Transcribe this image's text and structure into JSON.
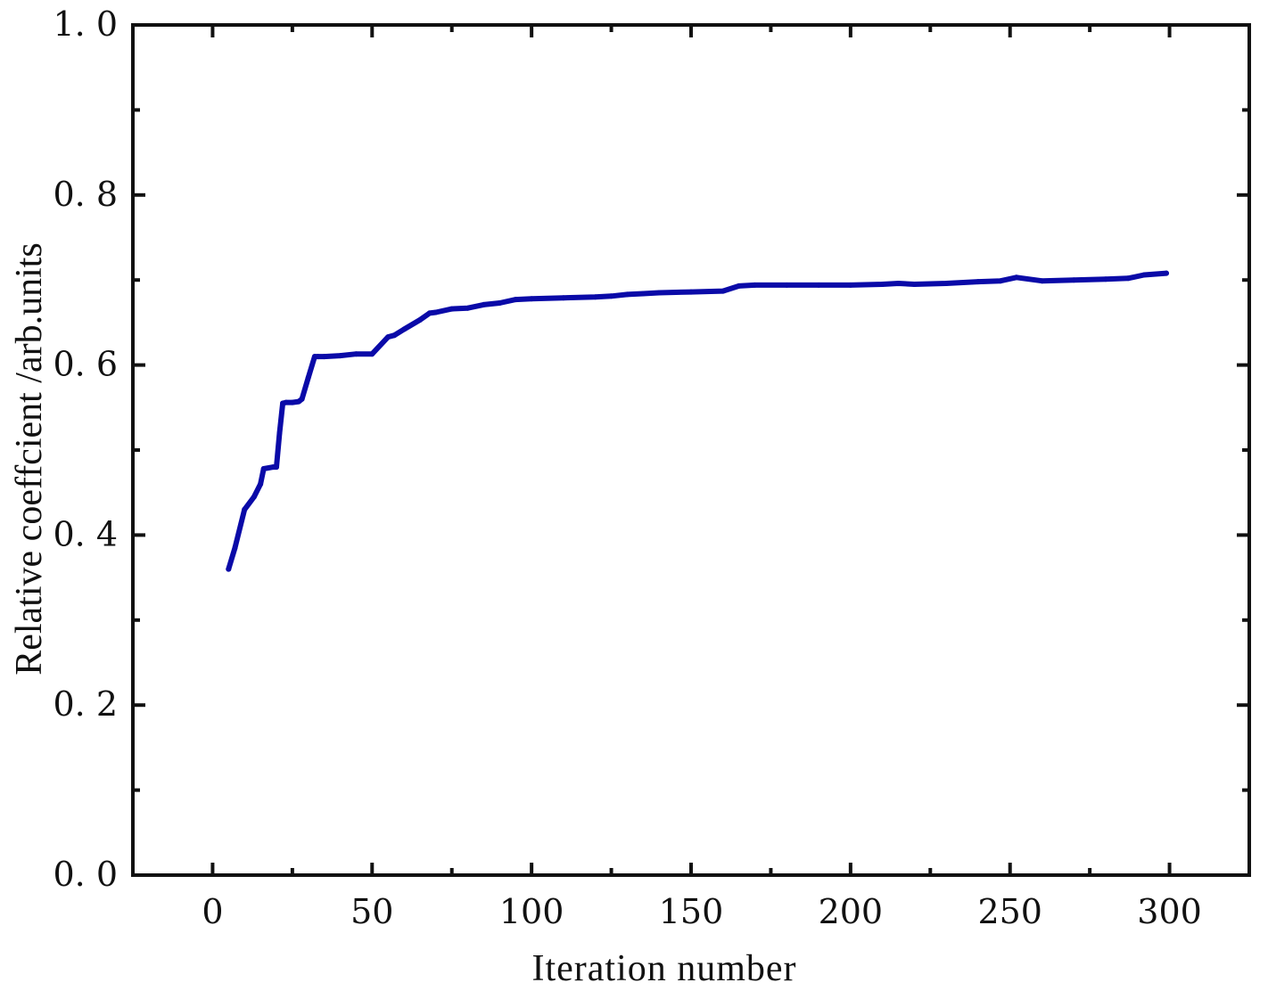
{
  "chart_data": {
    "type": "line",
    "title": "",
    "xlabel": "Iteration number",
    "ylabel": "Relative coeffcient /arb.units",
    "xlim": [
      -25,
      325
    ],
    "ylim": [
      0.0,
      1.0
    ],
    "x_ticks": [
      0,
      50,
      100,
      150,
      200,
      250,
      300
    ],
    "x_tick_labels": [
      "0",
      "50",
      "100",
      "150",
      "200",
      "250",
      "300"
    ],
    "y_ticks": [
      0.0,
      0.2,
      0.4,
      0.6,
      0.8,
      1.0
    ],
    "y_tick_labels": [
      "0. 0",
      "0. 2",
      "0. 4",
      "0. 6",
      "0. 8",
      "1. 0"
    ],
    "grid": false,
    "legend": "none",
    "colors": {
      "series": "#0a0aa8",
      "axes": "#111111"
    },
    "series": [
      {
        "x": [
          5,
          7,
          10,
          13,
          15,
          16,
          19,
          20,
          21,
          22,
          23,
          25,
          27,
          28,
          30,
          32,
          33,
          35,
          40,
          45,
          50,
          55,
          57,
          60,
          65,
          68,
          70,
          75,
          80,
          85,
          90,
          95,
          100,
          110,
          120,
          125,
          130,
          135,
          140,
          150,
          160,
          165,
          170,
          180,
          190,
          200,
          210,
          215,
          220,
          230,
          240,
          247,
          252,
          260,
          270,
          280,
          287,
          292,
          299
        ],
        "y": [
          0.36,
          0.385,
          0.43,
          0.445,
          0.46,
          0.478,
          0.48,
          0.48,
          0.52,
          0.555,
          0.556,
          0.556,
          0.557,
          0.56,
          0.585,
          0.61,
          0.61,
          0.61,
          0.611,
          0.613,
          0.613,
          0.633,
          0.635,
          0.642,
          0.653,
          0.661,
          0.662,
          0.666,
          0.667,
          0.671,
          0.673,
          0.677,
          0.678,
          0.679,
          0.68,
          0.681,
          0.683,
          0.684,
          0.685,
          0.686,
          0.687,
          0.693,
          0.694,
          0.694,
          0.694,
          0.694,
          0.695,
          0.696,
          0.695,
          0.696,
          0.698,
          0.699,
          0.703,
          0.699,
          0.7,
          0.701,
          0.702,
          0.706,
          0.708
        ]
      }
    ]
  }
}
